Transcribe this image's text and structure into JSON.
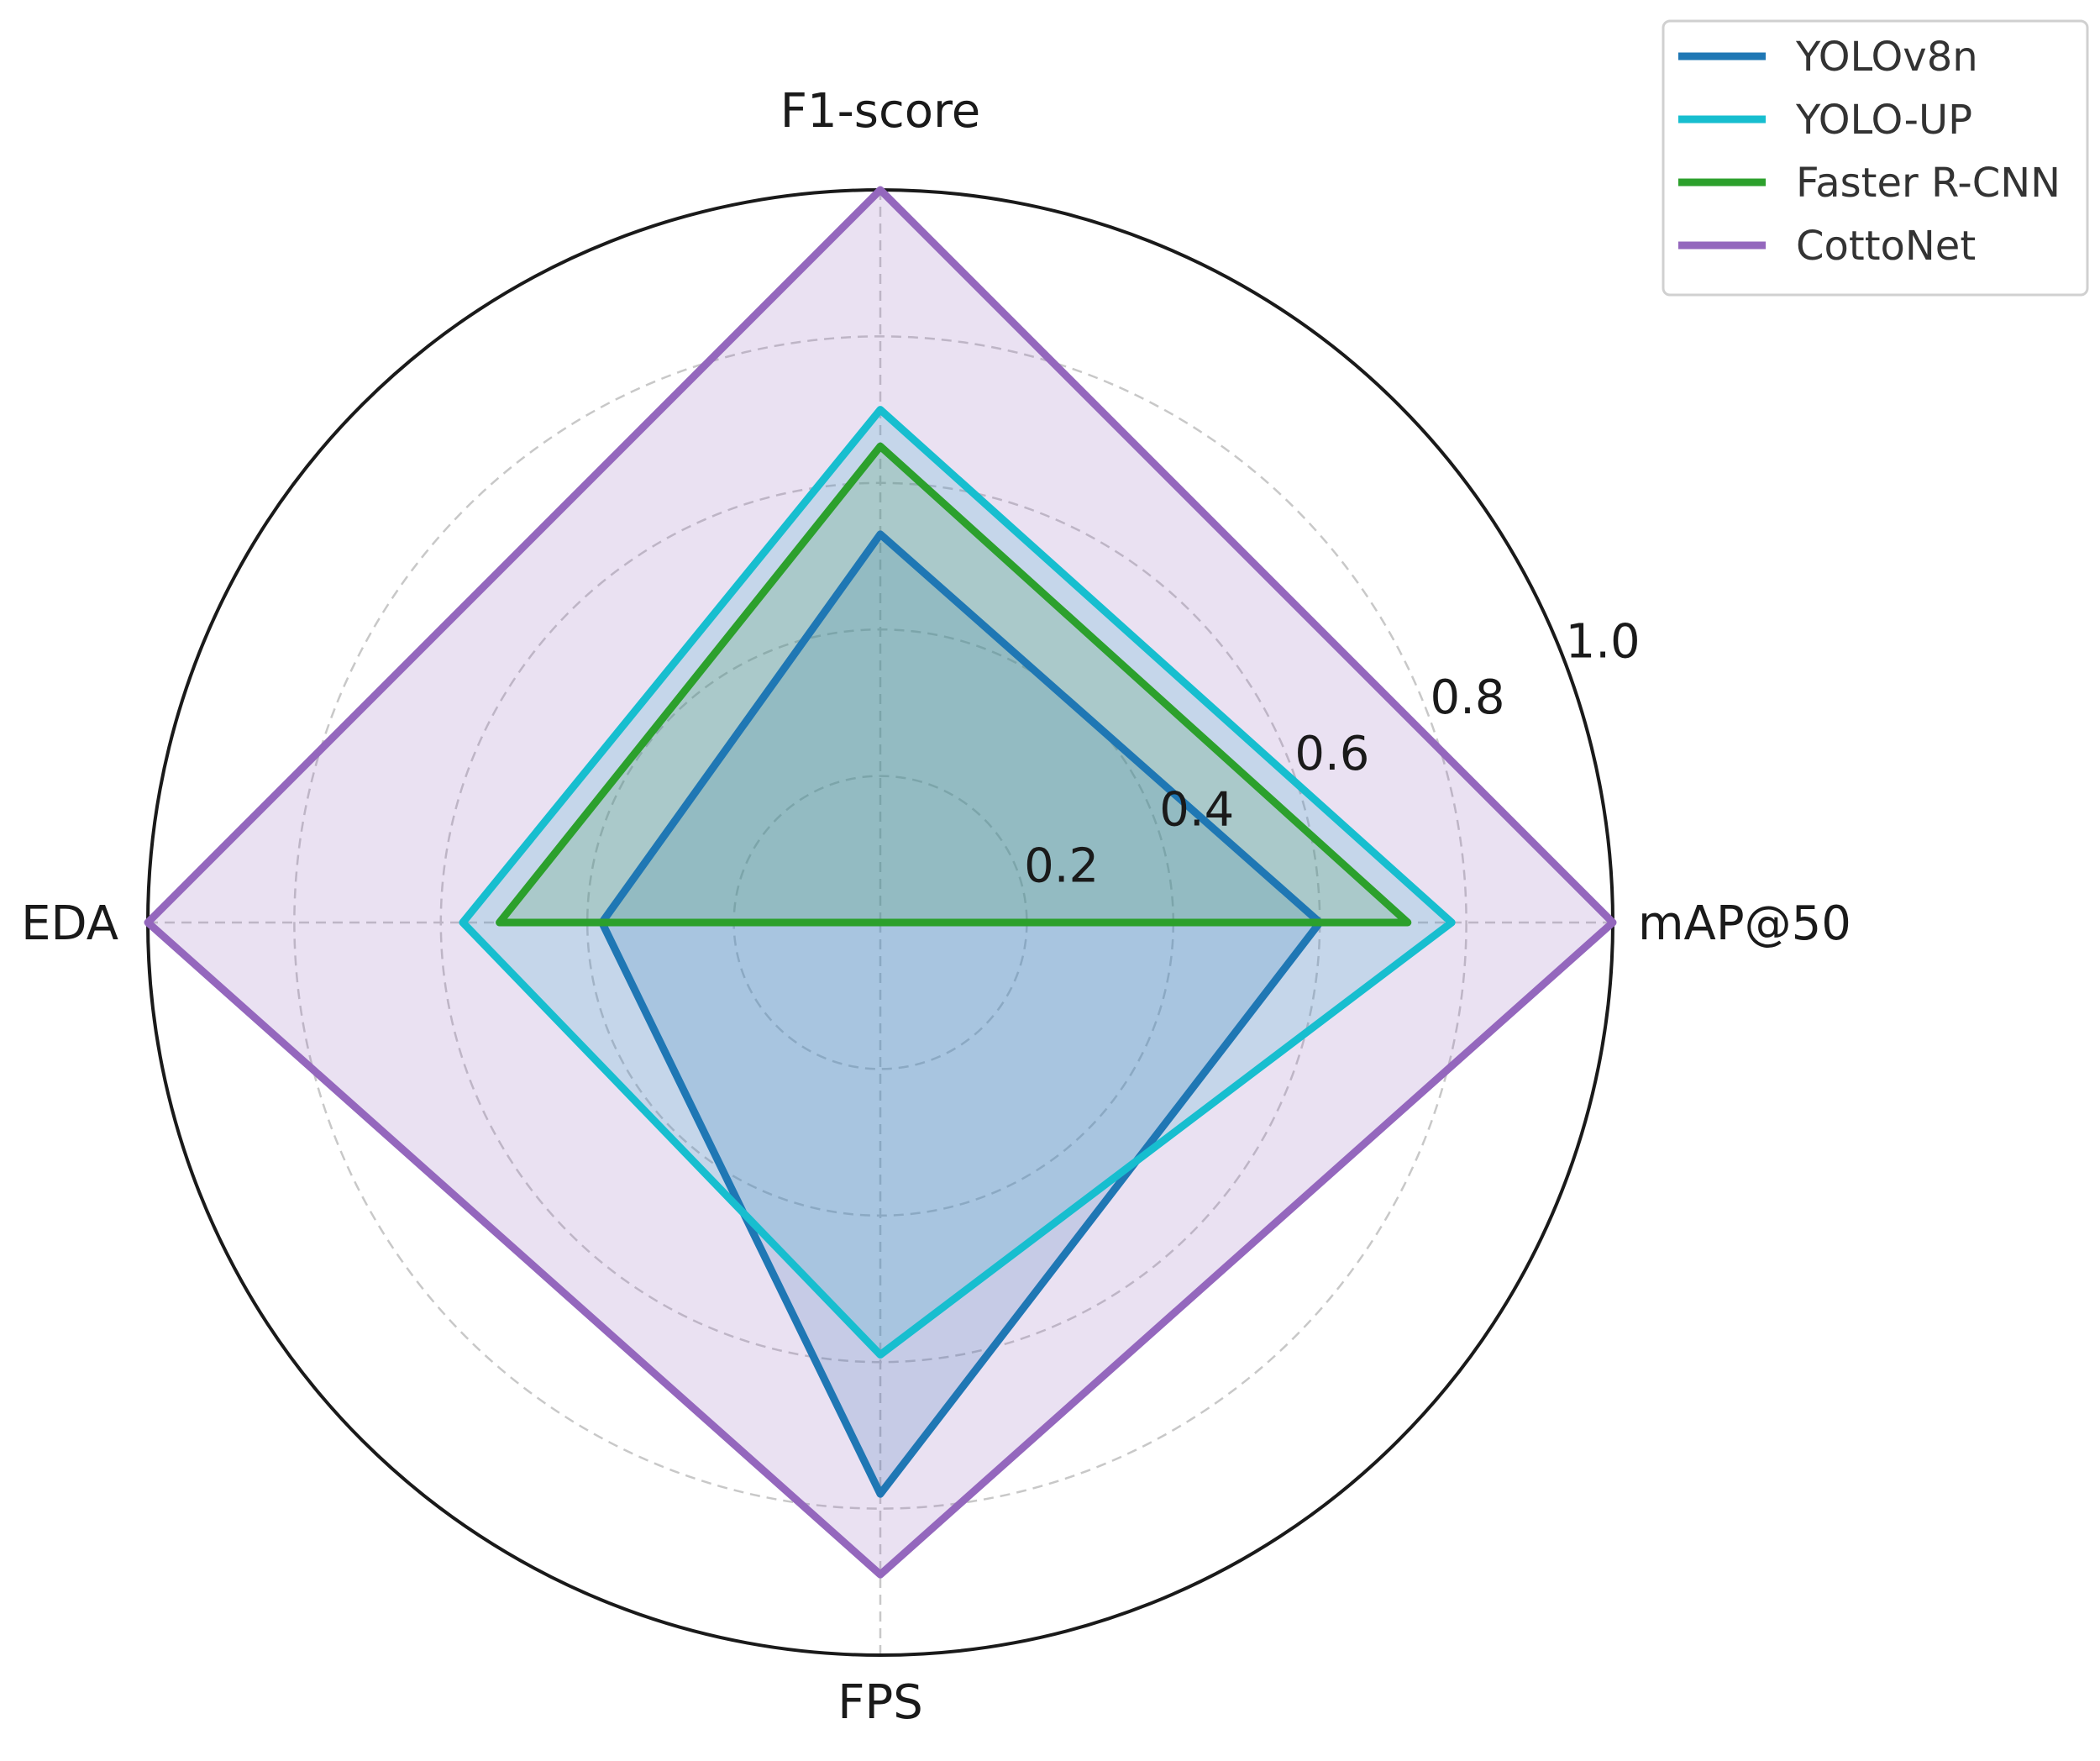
{
  "chart_data": {
    "type": "radar",
    "title": "",
    "axes": [
      "mAP@50",
      "F1-score",
      "EDA",
      "FPS"
    ],
    "rlim": [
      0,
      1.0
    ],
    "rticks": [
      0.2,
      0.4,
      0.6,
      0.8,
      1.0
    ],
    "rtick_labels": [
      "0.2",
      "0.4",
      "0.6",
      "0.8",
      "1.0"
    ],
    "grid": true,
    "legend_position": "top-right",
    "series": [
      {
        "name": "YOLOv8n",
        "values": [
          0.6,
          0.53,
          0.38,
          0.78
        ],
        "color": "#1f77b4"
      },
      {
        "name": "YOLO-UP",
        "values": [
          0.78,
          0.7,
          0.57,
          0.59
        ],
        "color": "#17becf"
      },
      {
        "name": "Faster R-CNN",
        "values": [
          0.72,
          0.65,
          0.52,
          0.0
        ],
        "color": "#2ca02c"
      },
      {
        "name": "CottoNet",
        "values": [
          1.0,
          1.0,
          1.0,
          0.89
        ],
        "color": "#9467bd"
      }
    ]
  }
}
